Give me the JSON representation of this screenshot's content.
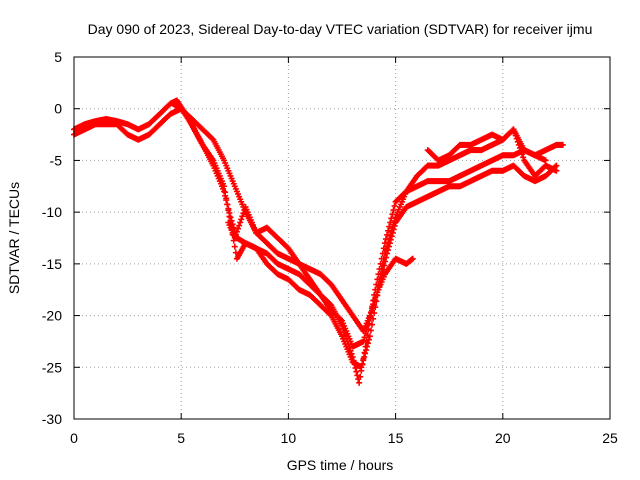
{
  "chart_data": {
    "type": "scatter",
    "title": "Day 090 of 2023, Sidereal Day-to-day VTEC variation (SDTVAR) for receiver ijmu",
    "xlabel": "GPS time / hours",
    "ylabel": "SDTVAR / TECUs",
    "xlim": [
      0,
      25
    ],
    "ylim": [
      -30,
      5
    ],
    "xticks": [
      0,
      5,
      10,
      15,
      20,
      25
    ],
    "yticks": [
      5,
      0,
      -5,
      -10,
      -15,
      -20,
      -25,
      -30
    ],
    "grid": true,
    "marker": "+",
    "color": "#ff0000",
    "series": [
      {
        "x": [
          0.0,
          0.5,
          1.0,
          1.5,
          2.0,
          2.5,
          3.0,
          3.5,
          4.0,
          4.5,
          4.8,
          5.2,
          5.6,
          6.0,
          6.5,
          7.0,
          7.3,
          7.6,
          8.0,
          8.5,
          9.0,
          9.5,
          10.0,
          10.5,
          11.0,
          11.5,
          12.0,
          12.5,
          13.0,
          13.3,
          13.6,
          14.0,
          14.5,
          15.0,
          15.5,
          16.0,
          16.5,
          17.0,
          17.5,
          18.0,
          18.5,
          19.0,
          19.5,
          20.0,
          20.5,
          21.0,
          21.5,
          22.0,
          22.5,
          22.8
        ],
        "y": [
          -2.0,
          -1.5,
          -1.2,
          -1.0,
          -1.2,
          -1.5,
          -2.0,
          -1.5,
          -0.5,
          0.5,
          0.8,
          -0.5,
          -2.0,
          -3.5,
          -5.5,
          -8.0,
          -10.5,
          -12.5,
          -13.0,
          -13.5,
          -14.0,
          -15.0,
          -15.5,
          -16.0,
          -17.0,
          -18.0,
          -19.0,
          -21.0,
          -24.0,
          -26.5,
          -23.0,
          -18.0,
          -13.0,
          -9.0,
          -8.0,
          -7.5,
          -7.0,
          -7.0,
          -7.0,
          -6.5,
          -6.0,
          -5.5,
          -5.0,
          -4.5,
          -4.5,
          -4.0,
          -4.5,
          -4.0,
          -3.5,
          -3.5
        ]
      },
      {
        "x": [
          0.0,
          0.5,
          1.0,
          1.5,
          2.0,
          2.5,
          3.0,
          3.5,
          4.0,
          4.5,
          5.0,
          5.5,
          6.0,
          6.5,
          7.0,
          7.3,
          7.6,
          8.0,
          8.5,
          9.0,
          9.5,
          10.0,
          10.5,
          11.0,
          11.5,
          12.0,
          12.5,
          13.0,
          13.4,
          13.8,
          14.2,
          14.6,
          15.0,
          15.5,
          16.0,
          16.5,
          17.0,
          17.5,
          18.0,
          18.5,
          19.0,
          19.5,
          20.0,
          20.5,
          21.0,
          21.5,
          22.0,
          22.5
        ],
        "y": [
          -2.5,
          -2.0,
          -1.5,
          -1.5,
          -1.5,
          -2.5,
          -3.0,
          -2.5,
          -1.5,
          -0.5,
          0.0,
          -1.5,
          -3.5,
          -5.0,
          -7.5,
          -11.0,
          -14.5,
          -13.0,
          -13.5,
          -15.0,
          -16.0,
          -16.5,
          -17.5,
          -18.0,
          -19.0,
          -20.0,
          -22.0,
          -24.5,
          -25.0,
          -22.0,
          -17.5,
          -14.0,
          -11.0,
          -9.5,
          -9.0,
          -8.5,
          -8.0,
          -7.5,
          -7.5,
          -7.0,
          -6.5,
          -6.0,
          -6.0,
          -5.5,
          -6.5,
          -7.0,
          -6.5,
          -5.5
        ]
      },
      {
        "x": [
          4.6,
          5.0,
          5.5,
          6.0,
          6.5,
          7.0,
          7.5,
          8.0,
          8.5,
          9.0,
          9.5,
          10.0,
          10.5,
          11.0,
          11.5,
          12.0,
          12.5,
          13.0,
          13.5,
          14.0,
          14.5,
          15.0,
          15.5,
          16.0,
          16.5,
          17.0,
          17.5,
          18.0,
          18.5,
          19.0,
          19.5,
          20.0,
          20.5,
          21.0,
          21.5,
          22.0
        ],
        "y": [
          0.5,
          0.0,
          -1.0,
          -2.0,
          -3.0,
          -5.0,
          -7.5,
          -10.0,
          -12.0,
          -13.0,
          -14.0,
          -14.5,
          -15.0,
          -15.5,
          -16.0,
          -17.0,
          -18.5,
          -20.0,
          -21.5,
          -19.0,
          -14.0,
          -10.5,
          -8.0,
          -6.5,
          -5.5,
          -5.5,
          -5.0,
          -4.5,
          -4.0,
          -4.0,
          -3.5,
          -3.0,
          -2.0,
          -4.0,
          -4.5,
          -5.0
        ]
      },
      {
        "x": [
          7.2,
          7.5,
          8.0,
          8.5,
          9.0,
          9.5,
          10.0,
          10.5,
          11.0,
          11.5,
          12.0,
          12.5,
          13.0,
          13.5,
          14.0,
          14.5,
          15.0,
          15.5,
          15.8
        ],
        "y": [
          -11.0,
          -12.5,
          -9.5,
          -12.0,
          -11.5,
          -12.5,
          -13.5,
          -15.0,
          -16.5,
          -18.0,
          -19.5,
          -20.5,
          -23.0,
          -22.5,
          -18.5,
          -16.0,
          -14.5,
          -15.0,
          -14.5
        ]
      },
      {
        "x": [
          16.5,
          17.0,
          17.5,
          18.0,
          18.5,
          19.0,
          19.5,
          20.0,
          20.5,
          21.0,
          21.5,
          22.0,
          22.5
        ],
        "y": [
          -4.0,
          -5.0,
          -4.5,
          -3.5,
          -3.5,
          -3.0,
          -2.5,
          -3.0,
          -2.0,
          -5.0,
          -6.5,
          -5.5,
          -6.0
        ]
      }
    ]
  }
}
